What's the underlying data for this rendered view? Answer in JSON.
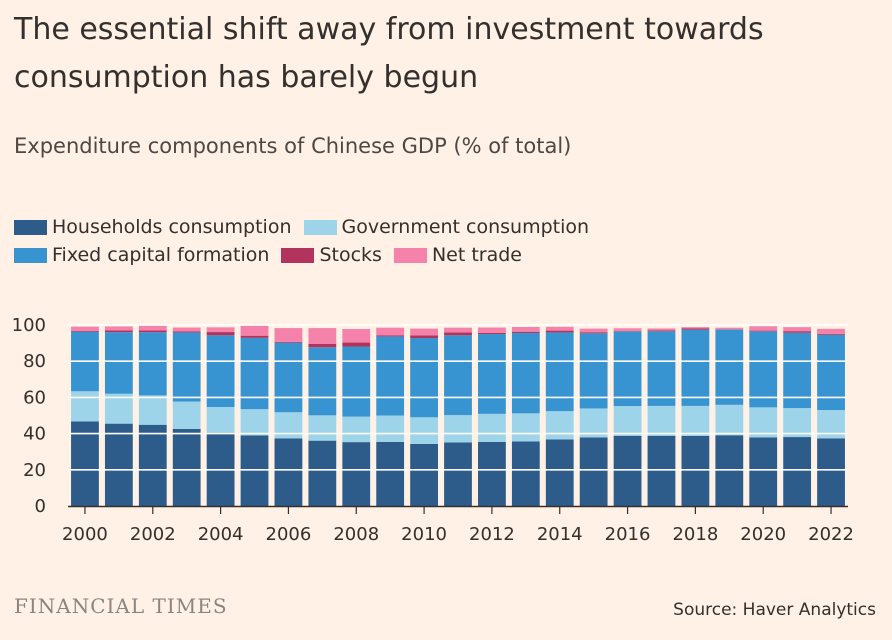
{
  "title": "The essential shift away from investment towards consumption has barely begun",
  "subtitle": "Expenditure components of Chinese GDP (% of total)",
  "brand": "FINANCIAL TIMES",
  "source": "Source: Haver Analytics",
  "colors": {
    "households": "#2e5c8a",
    "government": "#9dd4ea",
    "fixed_capital": "#3894d1",
    "stocks": "#b0345c",
    "net_trade": "#f582aa",
    "axis": "#33302e",
    "grid": "#ffffff"
  },
  "chart_data": {
    "type": "bar",
    "stacked": true,
    "title": "Expenditure components of Chinese GDP (% of total)",
    "categories": [
      "2000",
      "2001",
      "2002",
      "2003",
      "2004",
      "2005",
      "2006",
      "2007",
      "2008",
      "2009",
      "2010",
      "2011",
      "2012",
      "2013",
      "2014",
      "2015",
      "2016",
      "2017",
      "2018",
      "2019",
      "2020",
      "2021",
      "2022"
    ],
    "x_tick_labels": [
      "2000",
      "2002",
      "2004",
      "2006",
      "2008",
      "2010",
      "2012",
      "2014",
      "2016",
      "2018",
      "2020",
      "2022"
    ],
    "ylim": [
      0,
      100
    ],
    "y_ticks": [
      0,
      20,
      40,
      60,
      80,
      100
    ],
    "legend_position": "top-left",
    "series": [
      {
        "name": "Households consumption",
        "key": "households",
        "values": [
          46.7,
          45.5,
          44.9,
          42.6,
          40.5,
          39.0,
          37.4,
          36.1,
          35.3,
          35.4,
          34.3,
          35.1,
          35.4,
          35.7,
          36.8,
          37.9,
          38.8,
          38.8,
          38.7,
          39.1,
          37.9,
          38.1,
          37.4
        ]
      },
      {
        "name": "Government consumption",
        "key": "government",
        "values": [
          16.7,
          16.5,
          16.2,
          15.1,
          14.2,
          14.5,
          14.4,
          14.0,
          14.1,
          14.6,
          14.7,
          15.1,
          15.5,
          15.5,
          15.6,
          16.0,
          16.4,
          16.5,
          16.6,
          16.8,
          16.6,
          16.0,
          15.6
        ]
      },
      {
        "name": "Fixed capital formation",
        "key": "fixed_capital",
        "values": [
          32.9,
          34.0,
          34.9,
          38.2,
          39.6,
          39.4,
          38.4,
          37.6,
          38.7,
          43.7,
          43.8,
          44.1,
          44.1,
          44.4,
          43.5,
          41.5,
          41.2,
          41.2,
          42.1,
          41.6,
          42.0,
          41.6,
          41.6
        ]
      },
      {
        "name": "Stocks",
        "key": "stocks",
        "values": [
          0.4,
          1.0,
          1.0,
          0.5,
          1.8,
          1.2,
          0.5,
          1.8,
          2.2,
          0.5,
          1.5,
          1.6,
          0.7,
          0.7,
          1.0,
          0.6,
          0.2,
          0.5,
          0.8,
          0.1,
          0.4,
          0.9,
          0.5
        ]
      },
      {
        "name": "Net trade",
        "key": "net_trade",
        "values": [
          2.4,
          2.2,
          2.6,
          2.2,
          2.6,
          5.5,
          7.6,
          8.8,
          7.5,
          4.3,
          3.7,
          2.6,
          2.9,
          2.6,
          2.1,
          2.0,
          1.6,
          1.1,
          0.6,
          0.9,
          2.4,
          2.2,
          2.8
        ]
      }
    ]
  }
}
